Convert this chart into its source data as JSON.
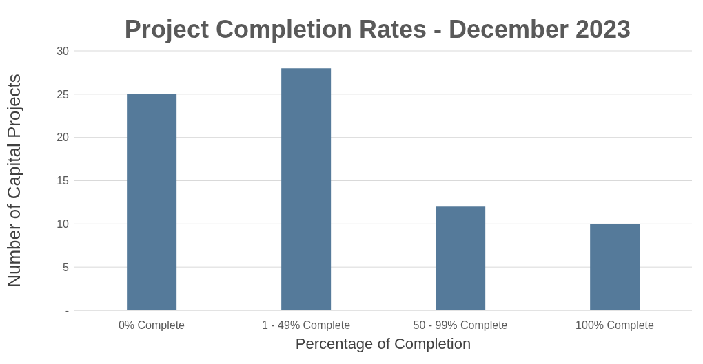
{
  "chart_data": {
    "type": "bar",
    "title": "Project Completion Rates - December 2023",
    "xlabel": "Percentage of Completion",
    "ylabel": "Number of Capital Projects",
    "categories": [
      "0% Complete",
      "1 - 49% Complete",
      "50 - 99% Complete",
      "100% Complete"
    ],
    "values": [
      25,
      28,
      12,
      10
    ],
    "color": "#557a9a",
    "ylim": [
      0,
      30
    ],
    "yticks": [
      {
        "value": 0,
        "label": "-"
      },
      5,
      10,
      15,
      20,
      25,
      30
    ],
    "grid": "y"
  }
}
